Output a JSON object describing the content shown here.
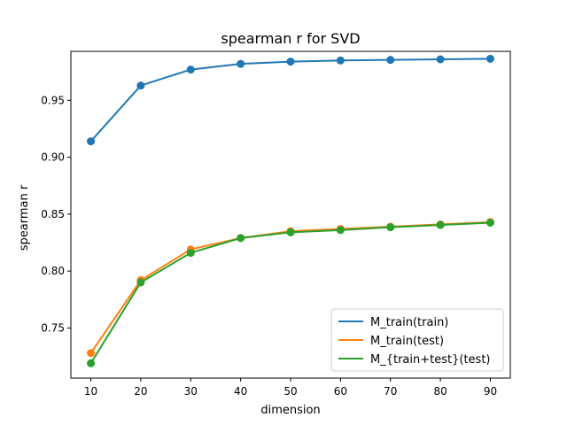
{
  "chart_data": {
    "type": "line",
    "title": "spearman r for SVD",
    "xlabel": "dimension",
    "ylabel": "spearman r",
    "x": [
      10,
      20,
      30,
      40,
      50,
      60,
      70,
      80,
      90
    ],
    "xlim": [
      6,
      94
    ],
    "ylim": [
      0.706,
      0.993
    ],
    "xticks": [
      "10",
      "20",
      "30",
      "40",
      "50",
      "60",
      "70",
      "80",
      "90"
    ],
    "yticks": [
      "0.75",
      "0.80",
      "0.85",
      "0.90",
      "0.95"
    ],
    "grid": false,
    "legend_position": "lower-right",
    "markers": true,
    "series": [
      {
        "name": "M_train(train)",
        "color": "#1f77b4",
        "values": [
          0.914,
          0.963,
          0.977,
          0.982,
          0.984,
          0.985,
          0.9855,
          0.986,
          0.9865
        ]
      },
      {
        "name": "M_train(test)",
        "color": "#ff7f0e",
        "values": [
          0.728,
          0.792,
          0.819,
          0.829,
          0.835,
          0.837,
          0.839,
          0.841,
          0.843
        ]
      },
      {
        "name": "M_{train+test}(test)",
        "color": "#2ca02c",
        "values": [
          0.719,
          0.79,
          0.816,
          0.829,
          0.834,
          0.836,
          0.8385,
          0.8405,
          0.8425
        ]
      }
    ]
  }
}
